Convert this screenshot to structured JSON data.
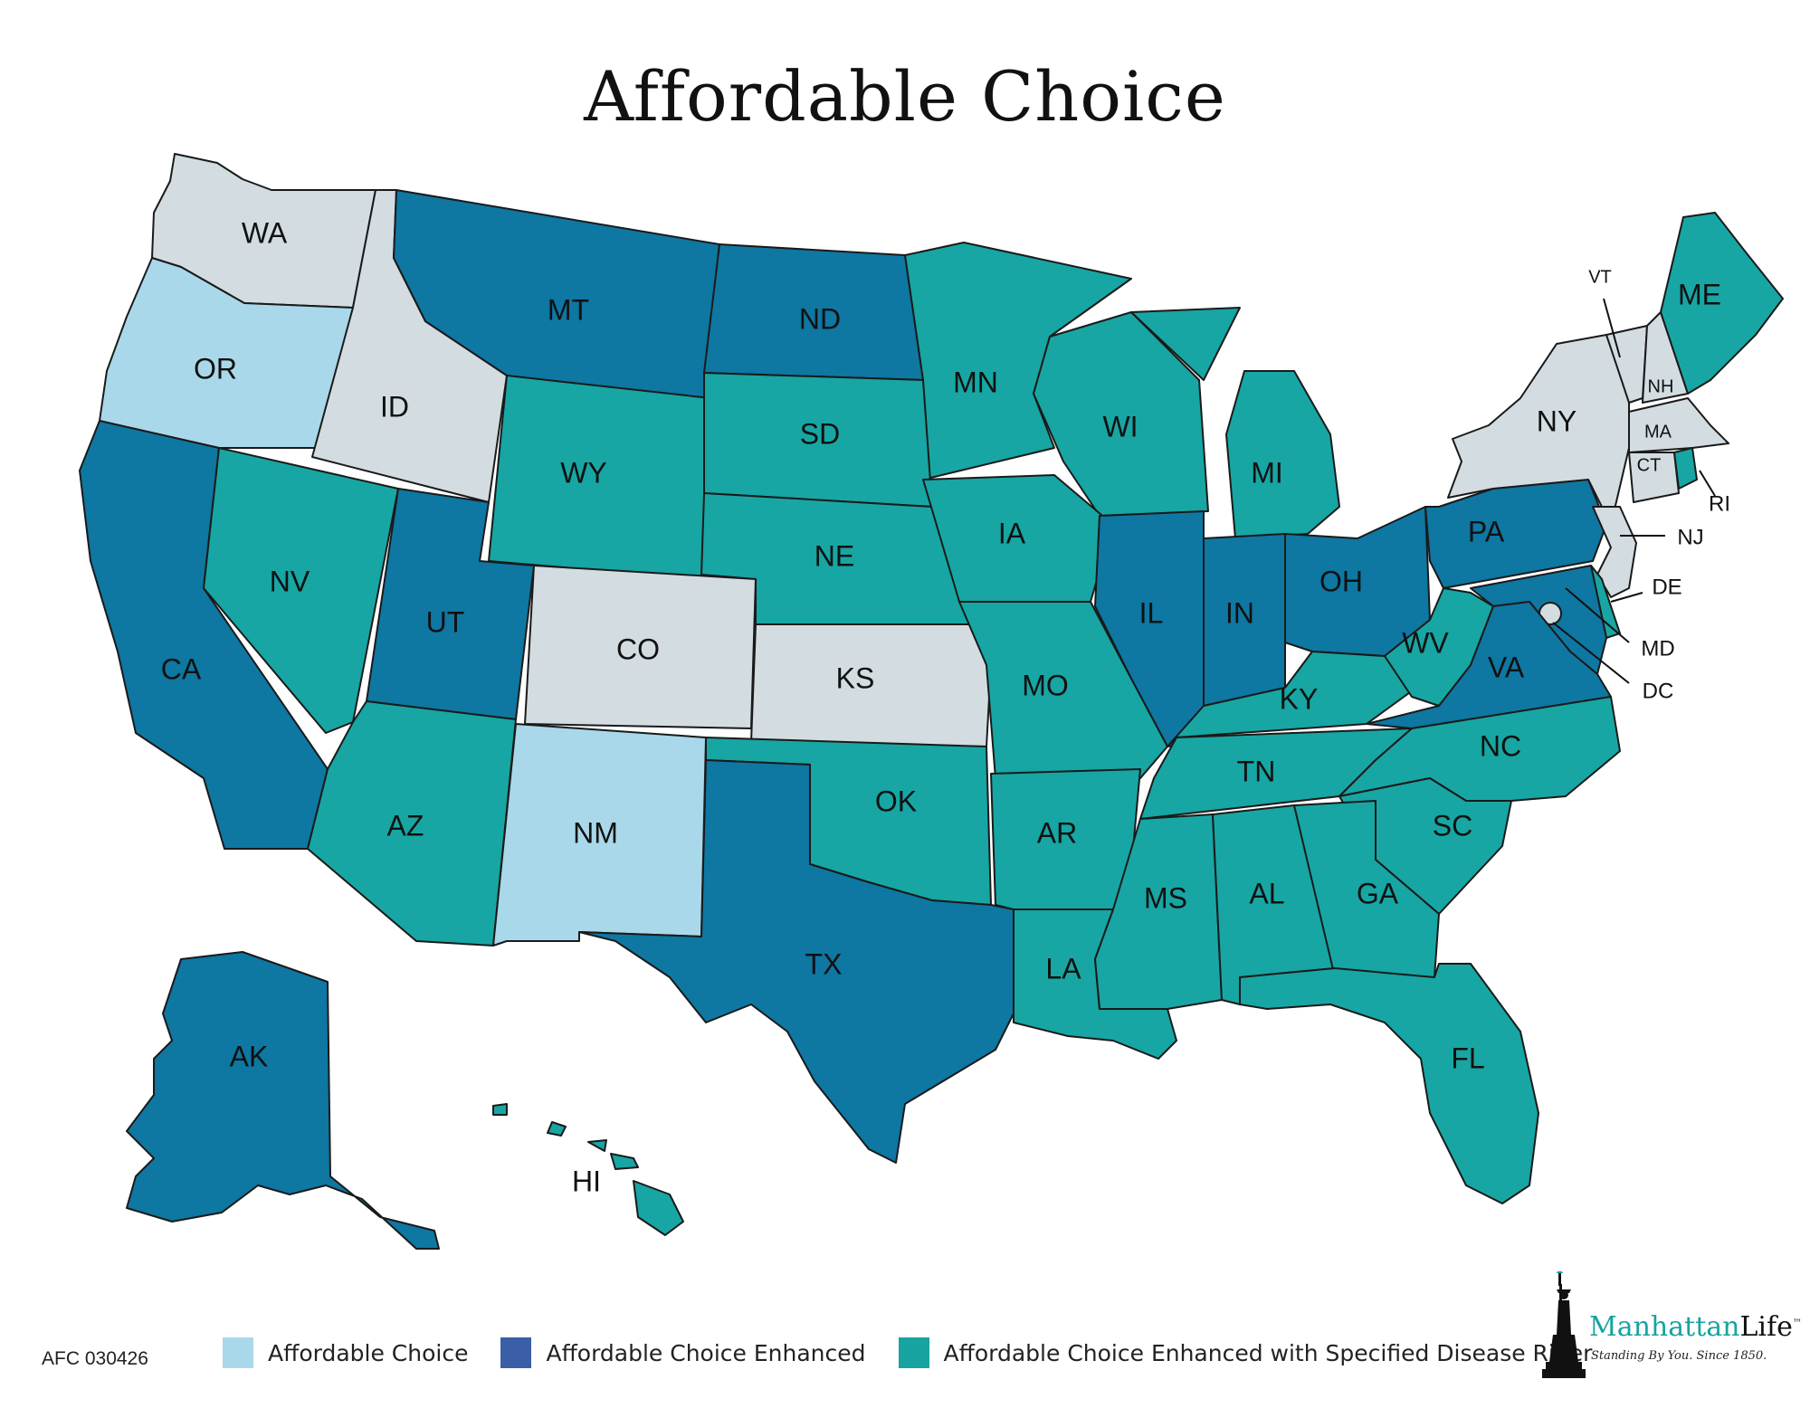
{
  "title": "Affordable Choice",
  "form_code": "AFC 030426",
  "legend": [
    {
      "label": "Affordable Choice",
      "color": "#a9d8ea"
    },
    {
      "label": "Affordable Choice Enhanced",
      "color": "#3b5fa6"
    },
    {
      "label": "Affordable Choice Enhanced with Specified Disease Rider",
      "color": "#17a3a0"
    }
  ],
  "map_colors": {
    "not_offered": "#d3dde1",
    "affordable_choice": "#a9d8ea",
    "enhanced": "#0e77a2",
    "enhanced_rider": "#17a6a3"
  },
  "states": {
    "WA": {
      "label": "WA",
      "category": "not_offered"
    },
    "OR": {
      "label": "OR",
      "category": "affordable_choice"
    },
    "ID": {
      "label": "ID",
      "category": "not_offered"
    },
    "MT": {
      "label": "MT",
      "category": "enhanced"
    },
    "ND": {
      "label": "ND",
      "category": "enhanced"
    },
    "MN": {
      "label": "MN",
      "category": "enhanced_rider"
    },
    "WI": {
      "label": "WI",
      "category": "enhanced_rider"
    },
    "MI": {
      "label": "MI",
      "category": "enhanced_rider"
    },
    "CA": {
      "label": "CA",
      "category": "enhanced"
    },
    "NV": {
      "label": "NV",
      "category": "enhanced_rider"
    },
    "UT": {
      "label": "UT",
      "category": "enhanced"
    },
    "WY": {
      "label": "WY",
      "category": "enhanced_rider"
    },
    "SD": {
      "label": "SD",
      "category": "enhanced_rider"
    },
    "NE": {
      "label": "NE",
      "category": "enhanced_rider"
    },
    "IA": {
      "label": "IA",
      "category": "enhanced_rider"
    },
    "IL": {
      "label": "IL",
      "category": "enhanced"
    },
    "IN": {
      "label": "IN",
      "category": "enhanced"
    },
    "OH": {
      "label": "OH",
      "category": "enhanced"
    },
    "PA": {
      "label": "PA",
      "category": "enhanced"
    },
    "NY": {
      "label": "NY",
      "category": "not_offered"
    },
    "VT": {
      "label": "VT",
      "category": "not_offered"
    },
    "NH": {
      "label": "NH",
      "category": "not_offered"
    },
    "ME": {
      "label": "ME",
      "category": "enhanced_rider"
    },
    "MA": {
      "label": "MA",
      "category": "not_offered"
    },
    "CT": {
      "label": "CT",
      "category": "not_offered"
    },
    "RI": {
      "label": "RI",
      "category": "enhanced_rider"
    },
    "NJ": {
      "label": "NJ",
      "category": "not_offered"
    },
    "DE": {
      "label": "DE",
      "category": "enhanced_rider"
    },
    "MD": {
      "label": "MD",
      "category": "enhanced"
    },
    "DC": {
      "label": "DC",
      "category": "not_offered"
    },
    "CO": {
      "label": "CO",
      "category": "not_offered"
    },
    "KS": {
      "label": "KS",
      "category": "not_offered"
    },
    "MO": {
      "label": "MO",
      "category": "enhanced_rider"
    },
    "KY": {
      "label": "KY",
      "category": "enhanced_rider"
    },
    "WV": {
      "label": "WV",
      "category": "enhanced_rider"
    },
    "VA": {
      "label": "VA",
      "category": "enhanced"
    },
    "AZ": {
      "label": "AZ",
      "category": "enhanced_rider"
    },
    "NM": {
      "label": "NM",
      "category": "affordable_choice"
    },
    "OK": {
      "label": "OK",
      "category": "enhanced_rider"
    },
    "AR": {
      "label": "AR",
      "category": "enhanced_rider"
    },
    "TN": {
      "label": "TN",
      "category": "enhanced_rider"
    },
    "NC": {
      "label": "NC",
      "category": "enhanced_rider"
    },
    "SC": {
      "label": "SC",
      "category": "enhanced_rider"
    },
    "TX": {
      "label": "TX",
      "category": "enhanced"
    },
    "LA": {
      "label": "LA",
      "category": "enhanced_rider"
    },
    "MS": {
      "label": "MS",
      "category": "enhanced_rider"
    },
    "AL": {
      "label": "AL",
      "category": "enhanced_rider"
    },
    "GA": {
      "label": "GA",
      "category": "enhanced_rider"
    },
    "FL": {
      "label": "FL",
      "category": "enhanced_rider"
    },
    "AK": {
      "label": "AK",
      "category": "enhanced"
    },
    "HI": {
      "label": "HI",
      "category": "enhanced_rider"
    }
  },
  "brand": {
    "name_part1": "Manhattan",
    "name_part2": "Life",
    "trademark": "™",
    "tagline": "Standing By You. Since 1850."
  }
}
